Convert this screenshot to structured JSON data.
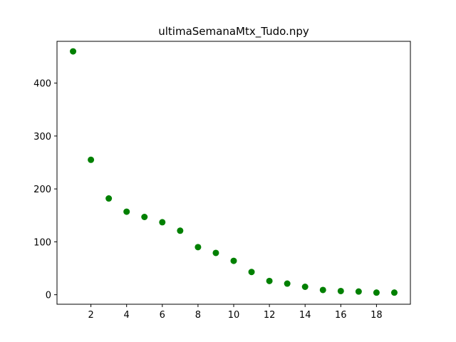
{
  "chart_data": {
    "type": "scatter",
    "title": "ultimaSemanaMtx_Tudo.npy",
    "xlabel": "",
    "ylabel": "",
    "xlim": [
      0.1,
      19.9
    ],
    "ylim": [
      -18,
      479
    ],
    "xticks": [
      2,
      4,
      6,
      8,
      10,
      12,
      14,
      16,
      18
    ],
    "yticks": [
      0,
      100,
      200,
      300,
      400
    ],
    "grid": false,
    "marker_color": "#008000",
    "x": [
      1,
      2,
      3,
      4,
      5,
      6,
      7,
      8,
      9,
      10,
      11,
      12,
      13,
      14,
      15,
      16,
      17,
      18,
      19
    ],
    "y": [
      460,
      255,
      182,
      157,
      147,
      137,
      121,
      90,
      79,
      64,
      43,
      26,
      21,
      15,
      9,
      7,
      6,
      4,
      4
    ]
  }
}
